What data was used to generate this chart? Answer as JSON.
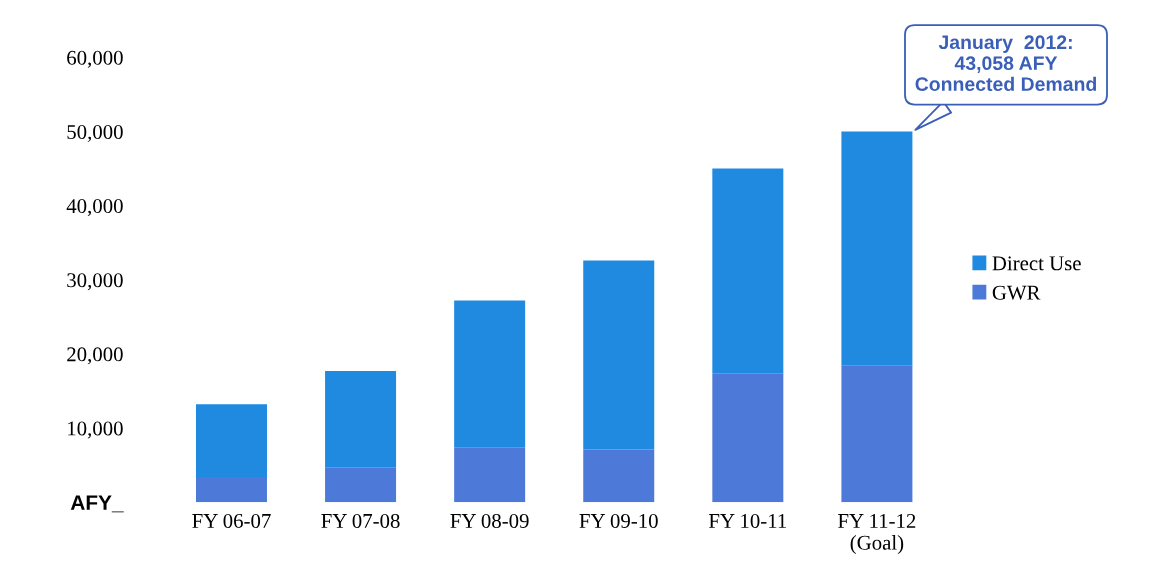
{
  "chart_data": {
    "type": "bar",
    "stacked": true,
    "categories": [
      "FY 06-07",
      "FY 07-08",
      "FY 08-09",
      "FY 09-10",
      "FY 10-11",
      "FY 11-12\n(Goal)"
    ],
    "series": [
      {
        "name": "GWR",
        "color": "#4d7ad8",
        "values": [
          3400,
          4700,
          7400,
          7100,
          17400,
          18400
        ]
      },
      {
        "name": "Direct Use",
        "color": "#1f8ae0",
        "values": [
          9800,
          13000,
          19800,
          25500,
          27600,
          31600
        ]
      }
    ],
    "ylim": [
      0,
      60000
    ],
    "yticks": [
      {
        "value": 0,
        "label": "AFY_"
      },
      {
        "value": 10000,
        "label": "10,000"
      },
      {
        "value": 20000,
        "label": "20,000"
      },
      {
        "value": 30000,
        "label": "30,000"
      },
      {
        "value": 40000,
        "label": "40,000"
      },
      {
        "value": 50000,
        "label": "50,000"
      },
      {
        "value": 60000,
        "label": "60,000"
      }
    ],
    "annotations": [
      {
        "text": "January  2012:\n43,058 AFY\nConnected Demand",
        "x": "FY 11-12\n(Goal)",
        "y": 50000
      }
    ],
    "legend": "right",
    "grid": false
  }
}
